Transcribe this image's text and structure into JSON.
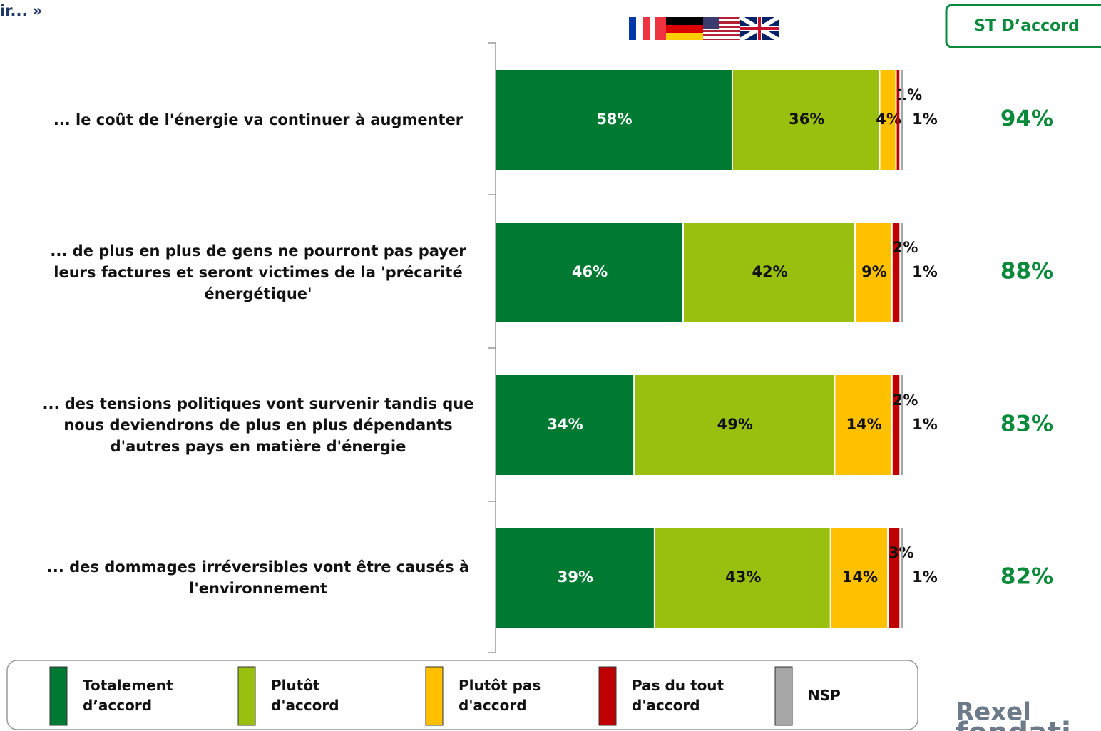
{
  "chart_data": {
    "type": "stacked_barh",
    "title": "ir... »",
    "summary_header": "ST D’accord",
    "logo": [
      "Rexel",
      "fondati"
    ],
    "categories": [
      "... le coût de l'énergie va continuer à augmenter",
      "... de plus en plus de gens ne pourront pas payer leurs factures et seront victimes de la 'précarité énergétique'",
      "... des tensions politiques vont survenir tandis que nous deviendrons de plus en plus dépendants d'autres pays en matière d'énergie",
      "... des dommages irréversibles vont être causés à l'environnement"
    ],
    "series": [
      {
        "name": "Totalement d’accord",
        "color": "#007a33",
        "values": [
          58,
          46,
          34,
          39
        ],
        "value_labels": [
          "58%",
          "46%",
          "34%",
          "39%"
        ]
      },
      {
        "name": "Plutôt d'accord",
        "color": "#99c00e",
        "values": [
          36,
          42,
          49,
          43
        ],
        "value_labels": [
          "36%",
          "42%",
          "49%",
          "43%"
        ]
      },
      {
        "name": "Plutôt pas d'accord",
        "color": "#ffc000",
        "values": [
          4,
          9,
          14,
          14
        ],
        "value_labels": [
          "4%",
          "9%",
          "14%",
          "14%"
        ]
      },
      {
        "name": "Pas du tout d'accord",
        "color": "#c00000",
        "values": [
          1,
          2,
          2,
          3
        ],
        "value_labels": [
          "1%",
          "2%",
          "2%",
          "3%"
        ]
      },
      {
        "name": "NSP",
        "color": "#a6a6a6",
        "values": [
          1,
          1,
          1,
          1
        ],
        "value_labels": [
          "1%",
          "1%",
          "1%",
          "1%"
        ]
      }
    ],
    "summary": {
      "values": [
        94,
        88,
        83,
        82
      ],
      "value_labels": [
        "94%",
        "88%",
        "83%",
        "82%"
      ],
      "color": "#0b8a3c"
    },
    "xlim": [
      0,
      100
    ]
  }
}
